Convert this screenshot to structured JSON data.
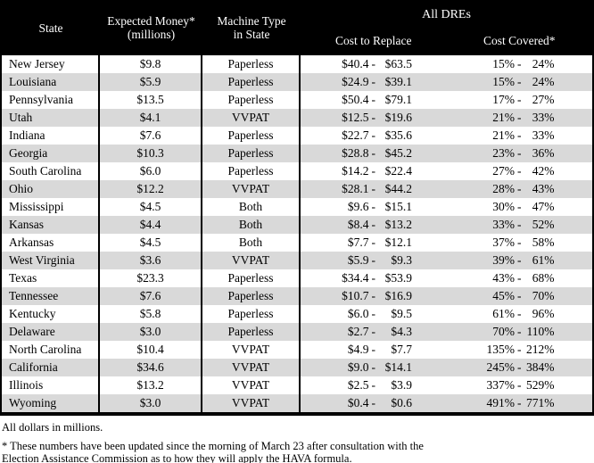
{
  "table": {
    "columns": {
      "state": "State",
      "expected_money_line1": "Expected Money*",
      "expected_money_line2": "(millions)",
      "machine_type_line1": "Machine Type",
      "machine_type_line2": "in State",
      "all_dres": "All DREs",
      "cost_to_replace": "Cost to Replace",
      "cost_covered": "Cost Covered*"
    },
    "rows": [
      {
        "state": "New Jersey",
        "expected_money": "$9.8",
        "machine_type": "Paperless",
        "cost_low": "$40.4",
        "cost_high": "$63.5",
        "covered_low": "15%",
        "covered_high": "24%"
      },
      {
        "state": "Louisiana",
        "expected_money": "$5.9",
        "machine_type": "Paperless",
        "cost_low": "$24.9",
        "cost_high": "$39.1",
        "covered_low": "15%",
        "covered_high": "24%"
      },
      {
        "state": "Pennsylvania",
        "expected_money": "$13.5",
        "machine_type": "Paperless",
        "cost_low": "$50.4",
        "cost_high": "$79.1",
        "covered_low": "17%",
        "covered_high": "27%"
      },
      {
        "state": "Utah",
        "expected_money": "$4.1",
        "machine_type": "VVPAT",
        "cost_low": "$12.5",
        "cost_high": "$19.6",
        "covered_low": "21%",
        "covered_high": "33%"
      },
      {
        "state": "Indiana",
        "expected_money": "$7.6",
        "machine_type": "Paperless",
        "cost_low": "$22.7",
        "cost_high": "$35.6",
        "covered_low": "21%",
        "covered_high": "33%"
      },
      {
        "state": "Georgia",
        "expected_money": "$10.3",
        "machine_type": "Paperless",
        "cost_low": "$28.8",
        "cost_high": "$45.2",
        "covered_low": "23%",
        "covered_high": "36%"
      },
      {
        "state": "South Carolina",
        "expected_money": "$6.0",
        "machine_type": "Paperless",
        "cost_low": "$14.2",
        "cost_high": "$22.4",
        "covered_low": "27%",
        "covered_high": "42%"
      },
      {
        "state": "Ohio",
        "expected_money": "$12.2",
        "machine_type": "VVPAT",
        "cost_low": "$28.1",
        "cost_high": "$44.2",
        "covered_low": "28%",
        "covered_high": "43%"
      },
      {
        "state": "Mississippi",
        "expected_money": "$4.5",
        "machine_type": "Both",
        "cost_low": "$9.6",
        "cost_high": "$15.1",
        "covered_low": "30%",
        "covered_high": "47%"
      },
      {
        "state": "Kansas",
        "expected_money": "$4.4",
        "machine_type": "Both",
        "cost_low": "$8.4",
        "cost_high": "$13.2",
        "covered_low": "33%",
        "covered_high": "52%"
      },
      {
        "state": "Arkansas",
        "expected_money": "$4.5",
        "machine_type": "Both",
        "cost_low": "$7.7",
        "cost_high": "$12.1",
        "covered_low": "37%",
        "covered_high": "58%"
      },
      {
        "state": "West Virginia",
        "expected_money": "$3.6",
        "machine_type": "VVPAT",
        "cost_low": "$5.9",
        "cost_high": "$9.3",
        "covered_low": "39%",
        "covered_high": "61%"
      },
      {
        "state": "Texas",
        "expected_money": "$23.3",
        "machine_type": "Paperless",
        "cost_low": "$34.4",
        "cost_high": "$53.9",
        "covered_low": "43%",
        "covered_high": "68%"
      },
      {
        "state": "Tennessee",
        "expected_money": "$7.6",
        "machine_type": "Paperless",
        "cost_low": "$10.7",
        "cost_high": "$16.9",
        "covered_low": "45%",
        "covered_high": "70%"
      },
      {
        "state": "Kentucky",
        "expected_money": "$5.8",
        "machine_type": "Paperless",
        "cost_low": "$6.0",
        "cost_high": "$9.5",
        "covered_low": "61%",
        "covered_high": "96%"
      },
      {
        "state": "Delaware",
        "expected_money": "$3.0",
        "machine_type": "Paperless",
        "cost_low": "$2.7",
        "cost_high": "$4.3",
        "covered_low": "70%",
        "covered_high": "110%"
      },
      {
        "state": "North Carolina",
        "expected_money": "$10.4",
        "machine_type": "VVPAT",
        "cost_low": "$4.9",
        "cost_high": "$7.7",
        "covered_low": "135%",
        "covered_high": "212%"
      },
      {
        "state": "California",
        "expected_money": "$34.6",
        "machine_type": "VVPAT",
        "cost_low": "$9.0",
        "cost_high": "$14.1",
        "covered_low": "245%",
        "covered_high": "384%"
      },
      {
        "state": "Illinois",
        "expected_money": "$13.2",
        "machine_type": "VVPAT",
        "cost_low": "$2.5",
        "cost_high": "$3.9",
        "covered_low": "337%",
        "covered_high": "529%"
      },
      {
        "state": "Wyoming",
        "expected_money": "$3.0",
        "machine_type": "VVPAT",
        "cost_low": "$0.4",
        "cost_high": "$0.6",
        "covered_low": "491%",
        "covered_high": "771%"
      }
    ]
  },
  "footnotes": {
    "line1": "All dollars in millions.",
    "line2": "* These numbers have been updated since the morning of March 23 after consultation with the",
    "line3": "Election Assistance Commission as to how they will apply the HAVA formula."
  },
  "colors": {
    "header_bg": "#000000",
    "header_text": "#ffffff",
    "row_alt_bg": "#d9d9d9",
    "body_text": "#000000"
  },
  "chart_data": {
    "type": "table",
    "title": "All DREs",
    "columns": [
      "State",
      "Expected Money* (millions)",
      "Machine Type in State",
      "All DREs Cost to Replace",
      "All DREs Cost Covered*"
    ],
    "rows": [
      [
        "New Jersey",
        "$9.8",
        "Paperless",
        "$40.4 - $63.5",
        "15% - 24%"
      ],
      [
        "Louisiana",
        "$5.9",
        "Paperless",
        "$24.9 - $39.1",
        "15% - 24%"
      ],
      [
        "Pennsylvania",
        "$13.5",
        "Paperless",
        "$50.4 - $79.1",
        "17% - 27%"
      ],
      [
        "Utah",
        "$4.1",
        "VVPAT",
        "$12.5 - $19.6",
        "21% - 33%"
      ],
      [
        "Indiana",
        "$7.6",
        "Paperless",
        "$22.7 - $35.6",
        "21% - 33%"
      ],
      [
        "Georgia",
        "$10.3",
        "Paperless",
        "$28.8 - $45.2",
        "23% - 36%"
      ],
      [
        "South Carolina",
        "$6.0",
        "Paperless",
        "$14.2 - $22.4",
        "27% - 42%"
      ],
      [
        "Ohio",
        "$12.2",
        "VVPAT",
        "$28.1 - $44.2",
        "28% - 43%"
      ],
      [
        "Mississippi",
        "$4.5",
        "Both",
        "$9.6 - $15.1",
        "30% - 47%"
      ],
      [
        "Kansas",
        "$4.4",
        "Both",
        "$8.4 - $13.2",
        "33% - 52%"
      ],
      [
        "Arkansas",
        "$4.5",
        "Both",
        "$7.7 - $12.1",
        "37% - 58%"
      ],
      [
        "West Virginia",
        "$3.6",
        "VVPAT",
        "$5.9 - $9.3",
        "39% - 61%"
      ],
      [
        "Texas",
        "$23.3",
        "Paperless",
        "$34.4 - $53.9",
        "43% - 68%"
      ],
      [
        "Tennessee",
        "$7.6",
        "Paperless",
        "$10.7 - $16.9",
        "45% - 70%"
      ],
      [
        "Kentucky",
        "$5.8",
        "Paperless",
        "$6.0 - $9.5",
        "61% - 96%"
      ],
      [
        "Delaware",
        "$3.0",
        "Paperless",
        "$2.7 - $4.3",
        "70% - 110%"
      ],
      [
        "North Carolina",
        "$10.4",
        "VVPAT",
        "$4.9 - $7.7",
        "135% - 212%"
      ],
      [
        "California",
        "$34.6",
        "VVPAT",
        "$9.0 - $14.1",
        "245% - 384%"
      ],
      [
        "Illinois",
        "$13.2",
        "VVPAT",
        "$2.5 - $3.9",
        "337% - 529%"
      ],
      [
        "Wyoming",
        "$3.0",
        "VVPAT",
        "$0.4 - $0.6",
        "491% - 771%"
      ]
    ]
  }
}
